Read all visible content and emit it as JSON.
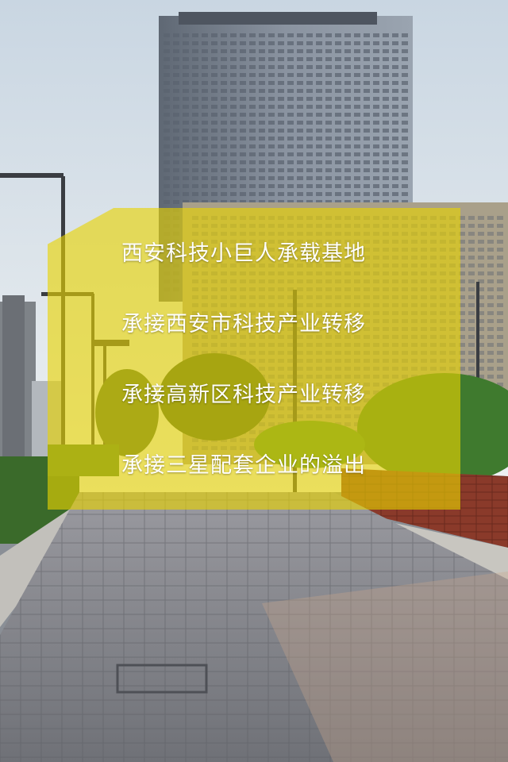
{
  "slide": {
    "lines": [
      "西安科技小巨人承载基地",
      "承接西安市科技产业转移",
      "承接高新区科技产业转移",
      "承接三星配套企业的溢出"
    ]
  },
  "colors": {
    "overlay": "#e8d400",
    "text": "#ffffff",
    "sky": "#dfe7ee",
    "pavement": "#8b8d92",
    "greenery": "#3f7a2e",
    "brick": "#8a3a2a"
  }
}
